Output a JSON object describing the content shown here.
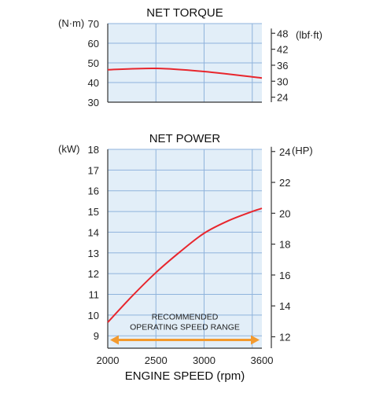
{
  "colors": {
    "plot_background": "#e2eef8",
    "grid": "#8fb3dc",
    "curve": "#e8262d",
    "arrow": "#f39a2e",
    "axis": "#333333"
  },
  "chart_data": [
    {
      "type": "line",
      "title": "NET TORQUE",
      "xlim": [
        2000,
        3600
      ],
      "x_gridlines": [
        2000,
        2500,
        3000,
        3500
      ],
      "left_axis": {
        "unit": "(N·m)",
        "ticks": [
          "70",
          "60",
          "50",
          "40",
          "30"
        ],
        "tick_values": [
          70,
          60,
          50,
          40,
          30
        ],
        "ylim": [
          30,
          70
        ]
      },
      "right_axis": {
        "unit": "(lbf·ft)",
        "ticks": [
          "48",
          "42",
          "36",
          "30",
          "24"
        ],
        "tick_values": [
          48,
          42,
          36,
          30,
          24
        ],
        "ylim": [
          22.13,
          51.63
        ]
      },
      "series": [
        {
          "x": [
            2000,
            2500,
            3000,
            3600
          ],
          "y": [
            46.5,
            47.2,
            45.6,
            42.3
          ]
        }
      ],
      "grid": true,
      "legend": "none"
    },
    {
      "type": "line",
      "title": "NET POWER",
      "xlim": [
        2000,
        3600
      ],
      "x_gridlines": [
        2000,
        2500,
        3000,
        3500
      ],
      "left_axis": {
        "unit": "(kW)",
        "ticks": [
          "18",
          "17",
          "16",
          "15",
          "14",
          "13",
          "12",
          "11",
          "10",
          "9"
        ],
        "tick_values": [
          18,
          17,
          16,
          15,
          14,
          13,
          12,
          11,
          10,
          9
        ],
        "ylim": [
          8.4,
          18
        ]
      },
      "right_axis": {
        "unit": "(HP)",
        "ticks": [
          "24",
          "22",
          "20",
          "18",
          "16",
          "14",
          "12"
        ],
        "tick_values": [
          24,
          22,
          20,
          18,
          16,
          14,
          12
        ],
        "ylim": [
          11.26,
          24.14
        ]
      },
      "series": [
        {
          "x": [
            2000,
            2250,
            2500,
            2750,
            3000,
            3250,
            3500,
            3600
          ],
          "y": [
            9.65,
            10.9,
            12.05,
            13.05,
            13.95,
            14.55,
            15.0,
            15.15
          ]
        }
      ],
      "annotation": {
        "lines": [
          "RECOMMENDED",
          "OPERATING SPEED RANGE"
        ],
        "x_range": [
          2000,
          3600
        ],
        "y_value": 8.8
      },
      "x_ticks": [
        "2000",
        "2500",
        "3000",
        "3600"
      ],
      "x_tick_values": [
        2000,
        2500,
        3000,
        3600
      ],
      "xlabel": "ENGINE SPEED (rpm)",
      "grid": true,
      "legend": "none"
    }
  ]
}
